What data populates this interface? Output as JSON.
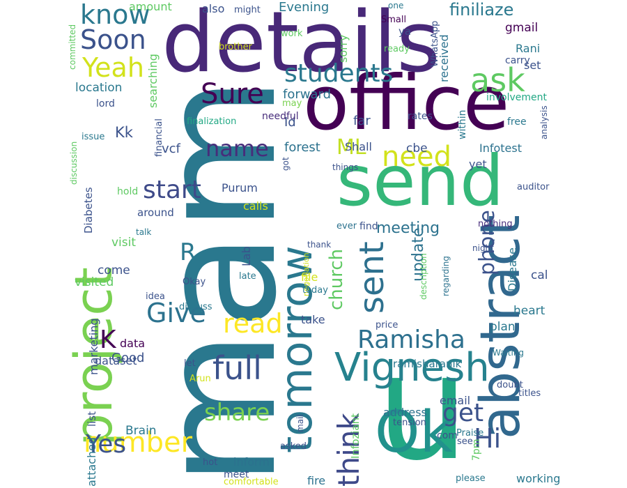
{
  "words": [
    {
      "text": "mam",
      "color": "#2a788e"
    },
    {
      "text": "u",
      "color": "#22a884"
    },
    {
      "text": "details",
      "color": "#482878"
    },
    {
      "text": "office",
      "color": "#440154"
    },
    {
      "text": "send",
      "color": "#35b779"
    },
    {
      "text": "project",
      "color": "#7ad151"
    },
    {
      "text": "abstract",
      "color": "#31688e"
    },
    {
      "text": "tomorrow",
      "color": "#2a788e"
    },
    {
      "text": "Ok",
      "color": "#21918c"
    },
    {
      "text": "Vignesh",
      "color": "#26828e"
    },
    {
      "text": "number",
      "color": "#fde725"
    },
    {
      "text": "students",
      "color": "#2a788e"
    },
    {
      "text": "ask",
      "color": "#5ec962"
    },
    {
      "text": "Sure",
      "color": "#440154"
    },
    {
      "text": "know",
      "color": "#2a788e"
    },
    {
      "text": "Soon",
      "color": "#3b528b"
    },
    {
      "text": "Yeah",
      "color": "#d2e21b"
    },
    {
      "text": "name",
      "color": "#472d7b"
    },
    {
      "text": "need",
      "color": "#d2e21b"
    },
    {
      "text": "ML",
      "color": "#c2df23"
    },
    {
      "text": "start",
      "color": "#3e4a89"
    },
    {
      "text": "sent",
      "color": "#2d708e"
    },
    {
      "text": "think",
      "color": "#3e4989"
    },
    {
      "text": "Ramisha",
      "color": "#2d708e"
    },
    {
      "text": "Give",
      "color": "#2c728e"
    },
    {
      "text": "read",
      "color": "#fde725"
    },
    {
      "text": "full",
      "color": "#3b528b"
    },
    {
      "text": "share",
      "color": "#7ad151"
    },
    {
      "text": "Yes",
      "color": "#3b528b"
    },
    {
      "text": "get",
      "color": "#3b528b"
    },
    {
      "text": "Hi",
      "color": "#3b528b"
    },
    {
      "text": "phone",
      "color": "#3b528b"
    },
    {
      "text": "church",
      "color": "#5ec962"
    },
    {
      "text": "K",
      "color": "#440154"
    },
    {
      "text": "R",
      "color": "#2a788e"
    },
    {
      "text": "meeting",
      "color": "#2c728e"
    },
    {
      "text": "update",
      "color": "#2c728e"
    },
    {
      "text": "finiliaze",
      "color": "#2a788e"
    },
    {
      "text": "Evening",
      "color": "#2a788e"
    },
    {
      "text": "amount",
      "color": "#5ec962"
    },
    {
      "text": "also",
      "color": "#3b528b"
    },
    {
      "text": "might",
      "color": "#3b528b"
    },
    {
      "text": "sorry",
      "color": "#5ec962"
    },
    {
      "text": "received",
      "color": "#2c728e"
    },
    {
      "text": "one",
      "color": "#2a788e"
    },
    {
      "text": "Small",
      "color": "#440154"
    },
    {
      "text": "WhatsApp",
      "color": "#3b528b"
    },
    {
      "text": "gmail",
      "color": "#440154"
    },
    {
      "text": "Rani",
      "color": "#2a788e"
    },
    {
      "text": "set",
      "color": "#3b528b"
    },
    {
      "text": "carry",
      "color": "#3b528b"
    },
    {
      "text": "involvement",
      "color": "#22a884"
    },
    {
      "text": "analysis",
      "color": "#3b528b"
    },
    {
      "text": "free",
      "color": "#2a788e"
    },
    {
      "text": "location",
      "color": "#2a788e"
    },
    {
      "text": "lord",
      "color": "#3b528b"
    },
    {
      "text": "issue",
      "color": "#2a788e"
    },
    {
      "text": "committed",
      "color": "#5ec962"
    },
    {
      "text": "brother",
      "color": "#d2e21b"
    },
    {
      "text": "work",
      "color": "#5ec962"
    },
    {
      "text": "ready",
      "color": "#5ec962"
    },
    {
      "text": "ya",
      "color": "#3b528b"
    },
    {
      "text": "forward",
      "color": "#2c728e"
    },
    {
      "text": "may",
      "color": "#7ad151"
    },
    {
      "text": "Id",
      "color": "#3b528b"
    },
    {
      "text": "far",
      "color": "#3b528b"
    },
    {
      "text": "rates",
      "color": "#3b528b"
    },
    {
      "text": "needful",
      "color": "#472d7b"
    },
    {
      "text": "finalization",
      "color": "#22a884"
    },
    {
      "text": "Kk",
      "color": "#3b528b"
    },
    {
      "text": "searching",
      "color": "#5ec962"
    },
    {
      "text": "financial",
      "color": "#3b528b"
    },
    {
      "text": "vcf",
      "color": "#3b528b"
    },
    {
      "text": "forest",
      "color": "#2c728e"
    },
    {
      "text": "Shall",
      "color": "#3b528b"
    },
    {
      "text": "cbe",
      "color": "#3b528b"
    },
    {
      "text": "Infotest",
      "color": "#2c728e"
    },
    {
      "text": "within",
      "color": "#2a788e"
    },
    {
      "text": "got",
      "color": "#3b528b"
    },
    {
      "text": "things",
      "color": "#3b528b"
    },
    {
      "text": "yet",
      "color": "#3b528b"
    },
    {
      "text": "auditor",
      "color": "#3b528b"
    },
    {
      "text": "discussion",
      "color": "#5ec962"
    },
    {
      "text": "Diabetes",
      "color": "#3b528b"
    },
    {
      "text": "hold",
      "color": "#5ec962"
    },
    {
      "text": "Purum",
      "color": "#3b528b"
    },
    {
      "text": "calls",
      "color": "#d2e21b"
    },
    {
      "text": "around",
      "color": "#3b528b"
    },
    {
      "text": "ever",
      "color": "#2c728e"
    },
    {
      "text": "find",
      "color": "#3b528b"
    },
    {
      "text": "nothing",
      "color": "#472d7b"
    },
    {
      "text": "talk",
      "color": "#2a788e"
    },
    {
      "text": "visit",
      "color": "#5ec962"
    },
    {
      "text": "come",
      "color": "#3b528b"
    },
    {
      "text": "visited",
      "color": "#5ec962"
    },
    {
      "text": "Lab",
      "color": "#3b528b"
    },
    {
      "text": "late",
      "color": "#2a788e"
    },
    {
      "text": "negotiation",
      "color": "#d2e21b"
    },
    {
      "text": "thank",
      "color": "#3b528b"
    },
    {
      "text": "night",
      "color": "#3b528b"
    },
    {
      "text": "Disease",
      "color": "#2a788e"
    },
    {
      "text": "cal",
      "color": "#3b528b"
    },
    {
      "text": "Okay",
      "color": "#3b528b"
    },
    {
      "text": "idea",
      "color": "#3b528b"
    },
    {
      "text": "discuss",
      "color": "#2a788e"
    },
    {
      "text": "file",
      "color": "#d2e21b"
    },
    {
      "text": "today",
      "color": "#2a788e"
    },
    {
      "text": "description",
      "color": "#5ec962"
    },
    {
      "text": "regarding",
      "color": "#2c728e"
    },
    {
      "text": "heart",
      "color": "#2a788e"
    },
    {
      "text": "take",
      "color": "#3b528b"
    },
    {
      "text": "price",
      "color": "#3b528b"
    },
    {
      "text": "plan",
      "color": "#2a788e"
    },
    {
      "text": "marketing",
      "color": "#3b528b"
    },
    {
      "text": "data",
      "color": "#440154"
    },
    {
      "text": "Good",
      "color": "#3b528b"
    },
    {
      "text": "Waiting",
      "color": "#2a788e"
    },
    {
      "text": "dataset",
      "color": "#3b528b"
    },
    {
      "text": "let",
      "color": "#3b528b"
    },
    {
      "text": "ramisharanik",
      "color": "#2a788e"
    },
    {
      "text": "list",
      "color": "#3b528b"
    },
    {
      "text": "Arun",
      "color": "#d2e21b"
    },
    {
      "text": "mail",
      "color": "#3b528b"
    },
    {
      "text": "Infoziant",
      "color": "#5ec962"
    },
    {
      "text": "doubt",
      "color": "#3b528b"
    },
    {
      "text": "titles",
      "color": "#3b528b"
    },
    {
      "text": "email",
      "color": "#3b528b"
    },
    {
      "text": "address",
      "color": "#2c728e"
    },
    {
      "text": "attached",
      "color": "#2a788e"
    },
    {
      "text": "Brain",
      "color": "#2a788e"
    },
    {
      "text": "tension",
      "color": "#3b528b"
    },
    {
      "text": "com",
      "color": "#3b528b"
    },
    {
      "text": "Praise",
      "color": "#2a788e"
    },
    {
      "text": "see",
      "color": "#3b528b"
    },
    {
      "text": "7pm",
      "color": "#5ec962"
    },
    {
      "text": "asked",
      "color": "#3b528b"
    },
    {
      "text": "inform",
      "color": "#2c728e"
    },
    {
      "text": "hot",
      "color": "#3b528b"
    },
    {
      "text": "meet",
      "color": "#3b528b"
    },
    {
      "text": "please",
      "color": "#2a788e"
    },
    {
      "text": "working",
      "color": "#2a788e"
    },
    {
      "text": "fire",
      "color": "#2c728e"
    },
    {
      "text": "comfortable",
      "color": "#d2e21b"
    }
  ]
}
